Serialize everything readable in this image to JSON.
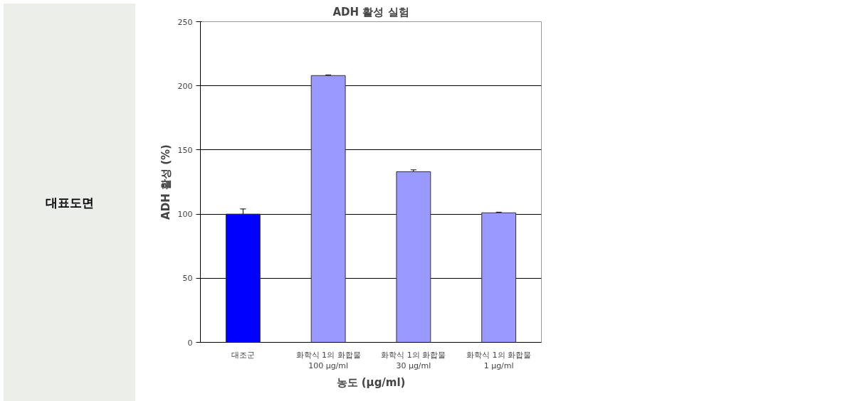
{
  "chart_data": {
    "type": "bar",
    "title": "ADH 활성 실험",
    "xlabel": "농도 (μg/ml)",
    "ylabel": "ADH 활성 (%)",
    "categories": [
      "대조군",
      "화학식 1의 화합물\n100 μg/ml",
      "화학식 1의 화합물\n30 μg/ml",
      "화학식 1의 화합물\n1 μg/ml"
    ],
    "values": [
      100,
      208,
      133,
      101
    ],
    "colors": [
      "#0000ff",
      "#9999ff",
      "#9999ff",
      "#9999ff"
    ],
    "errors": [
      4,
      0.5,
      1.5,
      0.5
    ],
    "ylim": [
      0,
      250
    ],
    "yticks": [
      0,
      50,
      100,
      150,
      200,
      250
    ],
    "grid": "y",
    "annotations": [
      "대표도면"
    ]
  }
}
